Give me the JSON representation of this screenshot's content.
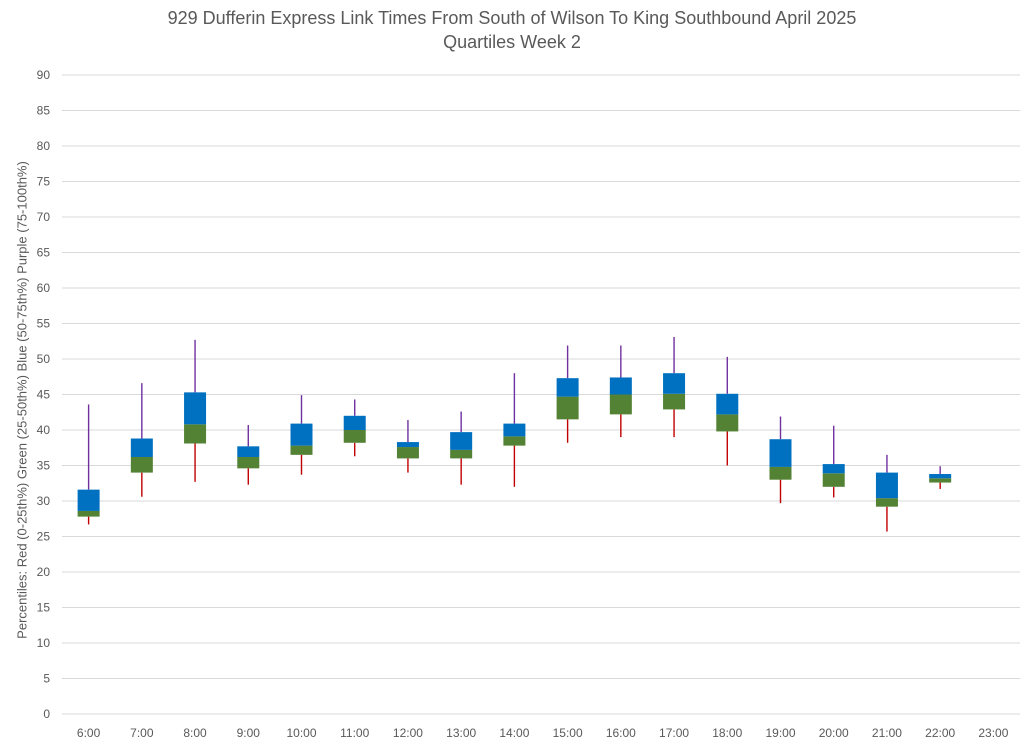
{
  "chart_data": {
    "type": "box",
    "title": "929 Dufferin Express Link Times From South of Wilson To King Southbound April 2025",
    "subtitle": "Quartiles Week 2",
    "ylabel": "Percentiles:  Red (0-25th%)  Green (25-50th%)  Blue (50-75th%)  Purple (75-100th%)",
    "xlabel": "",
    "ylim": [
      0,
      90
    ],
    "yticks": [
      0,
      5,
      10,
      15,
      20,
      25,
      30,
      35,
      40,
      45,
      50,
      55,
      60,
      65,
      70,
      75,
      80,
      85,
      90
    ],
    "grid": true,
    "categories": [
      "6:00",
      "7:00",
      "8:00",
      "9:00",
      "10:00",
      "11:00",
      "12:00",
      "13:00",
      "14:00",
      "15:00",
      "16:00",
      "17:00",
      "18:00",
      "19:00",
      "20:00",
      "21:00",
      "22:00",
      "23:00"
    ],
    "series": [
      {
        "name": "0-25th%",
        "color": "#C00000",
        "values": [
          26.7,
          30.6,
          32.7,
          32.3,
          33.7,
          36.3,
          34.0,
          32.3,
          32.0,
          38.2,
          39.0,
          39.0,
          35.0,
          29.7,
          30.5,
          25.7,
          31.7,
          null
        ]
      },
      {
        "name": "25th%",
        "values": [
          27.8,
          34.0,
          38.1,
          34.6,
          36.5,
          38.2,
          36.0,
          36.0,
          37.8,
          41.5,
          42.2,
          42.9,
          39.8,
          33.0,
          32.0,
          29.2,
          32.6,
          null
        ]
      },
      {
        "name": "50th%",
        "values": [
          28.6,
          36.2,
          40.8,
          36.2,
          37.8,
          40.0,
          37.6,
          37.2,
          39.1,
          44.7,
          45.0,
          45.1,
          42.2,
          34.8,
          33.9,
          30.4,
          33.2,
          null
        ]
      },
      {
        "name": "75th%",
        "values": [
          31.6,
          38.8,
          45.3,
          37.7,
          40.9,
          42.0,
          38.3,
          39.7,
          40.9,
          47.3,
          47.4,
          48.0,
          45.1,
          38.7,
          35.2,
          34.0,
          33.8,
          null
        ]
      },
      {
        "name": "100th%",
        "color": "#7030A0",
        "values": [
          43.6,
          46.6,
          52.7,
          40.7,
          44.9,
          44.3,
          41.4,
          42.6,
          48.0,
          51.9,
          51.9,
          53.1,
          50.3,
          41.9,
          40.6,
          36.5,
          34.9,
          null
        ]
      }
    ],
    "colors": {
      "green": "#548235",
      "blue": "#0070C0",
      "red": "#C00000",
      "purple": "#7030A0",
      "grid": "#D9D9D9",
      "text": "#595959"
    }
  }
}
